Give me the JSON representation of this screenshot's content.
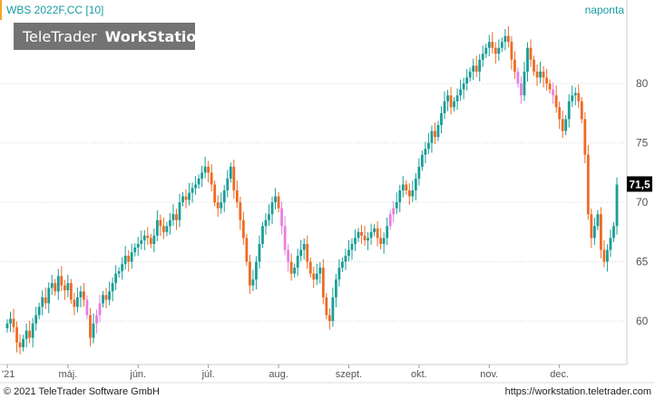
{
  "chart_title": "WBS 2022F,CC [10]",
  "period_label": "naponta",
  "watermark": {
    "part1": "TeleTrader",
    "part2": "WorkStation"
  },
  "footer": {
    "copyright": "© 2021  TeleTrader Software GmbH",
    "url": "https://workstation.teletrader.com"
  },
  "last_value_label": "71,5",
  "colors": {
    "up": "#1a9e96",
    "down": "#ef6a24",
    "pink": "#e77fe0",
    "accent_bar": "#f5a623",
    "title": "#1a9aa0"
  },
  "chart_data": {
    "type": "candlestick",
    "title": "WBS 2022F,CC [10]",
    "ylim": [
      56.5,
      85.5
    ],
    "y_ticks": [
      60,
      65,
      70,
      75,
      80
    ],
    "y_tick_labels": [
      "60",
      "65",
      "70",
      "75",
      "80"
    ],
    "x_ticks": [
      {
        "index": 0,
        "label": "'21"
      },
      {
        "index": 19,
        "label": "máj."
      },
      {
        "index": 41,
        "label": "jún."
      },
      {
        "index": 63,
        "label": "júl."
      },
      {
        "index": 85,
        "label": "aug."
      },
      {
        "index": 107,
        "label": "szept."
      },
      {
        "index": 129,
        "label": "okt."
      },
      {
        "index": 151,
        "label": "nov."
      },
      {
        "index": 173,
        "label": "dec."
      }
    ],
    "last_value": 71.5,
    "grid": true,
    "closes": [
      59.8,
      60.2,
      59.5,
      58.2,
      57.8,
      58.5,
      59.2,
      58.6,
      59.8,
      60.5,
      61.2,
      62.0,
      61.5,
      62.8,
      63.2,
      62.5,
      63.8,
      63.0,
      62.6,
      63.2,
      61.8,
      61.2,
      62.0,
      62.5,
      61.8,
      60.5,
      58.6,
      59.8,
      60.5,
      61.5,
      62.2,
      61.8,
      62.5,
      63.2,
      64.0,
      64.2,
      64.8,
      65.5,
      65.0,
      65.8,
      66.2,
      66.5,
      66.8,
      67.2,
      67.0,
      66.5,
      67.2,
      68.5,
      68.0,
      67.5,
      68.0,
      68.5,
      69.0,
      68.5,
      70.0,
      70.5,
      70.2,
      70.8,
      71.2,
      71.5,
      72.0,
      72.5,
      73.0,
      72.5,
      71.5,
      70.0,
      69.5,
      70.0,
      71.0,
      72.0,
      73.0,
      71.0,
      70.0,
      68.5,
      67.0,
      65.0,
      63.0,
      63.5,
      65.0,
      66.5,
      68.0,
      68.5,
      69.0,
      70.0,
      70.5,
      69.5,
      68.0,
      66.0,
      65.0,
      64.0,
      64.5,
      65.5,
      66.0,
      66.5,
      65.0,
      64.0,
      63.5,
      64.0,
      64.5,
      62.0,
      60.5,
      60.0,
      62.0,
      63.5,
      64.5,
      65.0,
      65.5,
      66.0,
      66.5,
      67.0,
      67.5,
      67.2,
      66.8,
      67.0,
      67.5,
      67.8,
      67.0,
      66.5,
      67.0,
      68.0,
      69.0,
      69.5,
      70.0,
      71.0,
      71.5,
      71.0,
      70.5,
      71.0,
      72.0,
      73.0,
      74.0,
      74.5,
      75.0,
      76.0,
      75.5,
      76.5,
      77.5,
      78.5,
      79.0,
      78.0,
      78.5,
      79.0,
      79.5,
      80.0,
      80.5,
      81.0,
      81.5,
      81.0,
      82.0,
      82.5,
      83.0,
      83.5,
      83.0,
      82.5,
      83.0,
      83.5,
      84.0,
      83.5,
      82.0,
      81.0,
      80.0,
      79.0,
      81.0,
      83.0,
      82.0,
      81.0,
      80.5,
      81.0,
      80.5,
      80.0,
      79.5,
      79.0,
      78.0,
      77.0,
      76.0,
      77.0,
      78.5,
      79.0,
      79.2,
      78.5,
      77.0,
      74.0,
      69.0,
      67.0,
      68.0,
      69.0,
      66.0,
      65.0,
      66.0,
      67.0,
      68.0,
      71.5
    ],
    "pink_indices": [
      25,
      28,
      29,
      86,
      87,
      88,
      120,
      121,
      160,
      161,
      171
    ]
  }
}
